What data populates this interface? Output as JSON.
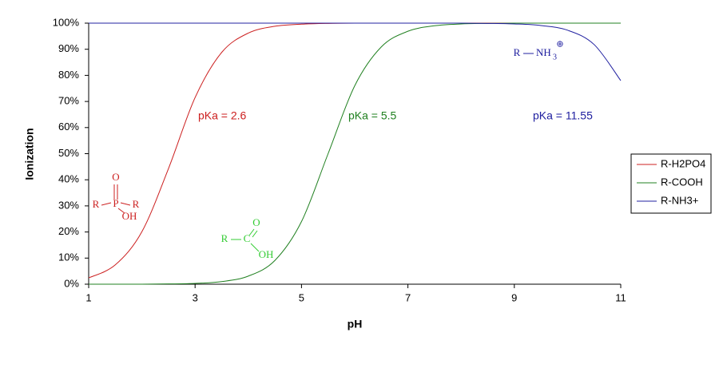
{
  "chart_data": {
    "type": "line",
    "x_label": "pH",
    "y_label": "Ionization",
    "x": [
      1,
      1.5,
      2,
      2.5,
      3,
      3.5,
      4,
      4.5,
      5,
      5.5,
      6,
      6.5,
      7,
      7.5,
      8,
      8.5,
      9,
      9.5,
      10,
      10.5,
      11
    ],
    "series": [
      {
        "name": "R-H2PO4",
        "color": "#cc2020",
        "values": [
          2.4,
          7.4,
          20.1,
          44.3,
          71.5,
          88.8,
          96.2,
          98.8,
          99.6,
          99.9,
          100,
          100,
          100,
          100,
          100,
          100,
          100,
          100,
          100,
          100,
          100
        ]
      },
      {
        "name": "R-COOH",
        "color": "#208020",
        "values": [
          0,
          0,
          0,
          0.1,
          0.3,
          1.0,
          3.1,
          9.1,
          24.0,
          50,
          76.0,
          90.9,
          96.9,
          99.0,
          99.7,
          99.9,
          100,
          100,
          100,
          100,
          100
        ]
      },
      {
        "name": "R-NH3+",
        "color": "#2020a0",
        "values": [
          100,
          100,
          100,
          100,
          100,
          100,
          100,
          100,
          100,
          100,
          100,
          100,
          100,
          100,
          100,
          99.9,
          99.7,
          99.1,
          97.3,
          91.8,
          78.0
        ]
      }
    ],
    "xlim": [
      1,
      11
    ],
    "xticks": [
      1,
      3,
      5,
      7,
      9,
      11
    ],
    "ylim": [
      0,
      100
    ],
    "yticks": [
      {
        "value": 0,
        "label": "0%"
      },
      {
        "value": 10,
        "label": "10%"
      },
      {
        "value": 20,
        "label": "20%"
      },
      {
        "value": 30,
        "label": "30%"
      },
      {
        "value": 40,
        "label": "40%"
      },
      {
        "value": 50,
        "label": "50%"
      },
      {
        "value": 60,
        "label": "60%"
      },
      {
        "value": 70,
        "label": "70%"
      },
      {
        "value": 80,
        "label": "80%"
      },
      {
        "value": 90,
        "label": "90%"
      },
      {
        "value": 100,
        "label": "100%"
      }
    ],
    "grid": false,
    "legend": "right",
    "annotations": [
      {
        "text": "pKa = 2.6",
        "color": "#cc2020"
      },
      {
        "text": "pKa = 5.5",
        "color": "#208020"
      },
      {
        "text": "pKa = 11.55",
        "color": "#2020a0"
      }
    ],
    "structures": {
      "phosphate": [
        "O",
        "P",
        "R",
        "R",
        "OH"
      ],
      "carboxyl": [
        "O",
        "R",
        "C",
        "OH"
      ],
      "amine": [
        "R",
        "NH",
        "3",
        "⊕"
      ]
    }
  }
}
